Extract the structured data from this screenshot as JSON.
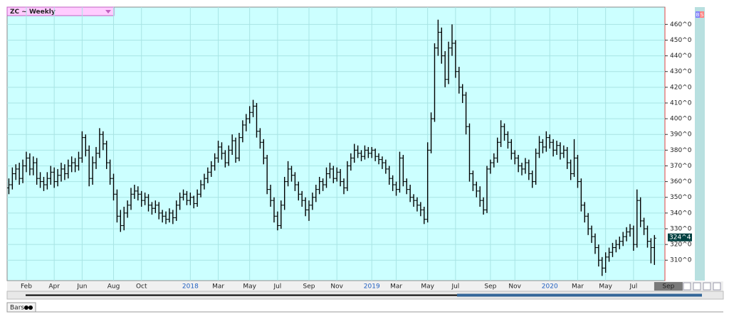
{
  "chart_data": {
    "type": "ohlc",
    "title": "ZC ~ Weekly",
    "tab": "Bars",
    "buttons": [
      "B",
      "S"
    ],
    "ylim": [
      297,
      471
    ],
    "xlim": [
      -0.5,
      188
    ],
    "yticks": [
      {
        "value": 310,
        "label": "310^0"
      },
      {
        "value": 320,
        "label": "320^0"
      },
      {
        "value": 330,
        "label": "330^0"
      },
      {
        "value": 340,
        "label": "340^0"
      },
      {
        "value": 350,
        "label": "350^0"
      },
      {
        "value": 360,
        "label": "360^0"
      },
      {
        "value": 370,
        "label": "370^0"
      },
      {
        "value": 380,
        "label": "380^0"
      },
      {
        "value": 390,
        "label": "390^0"
      },
      {
        "value": 400,
        "label": "400^0"
      },
      {
        "value": 410,
        "label": "410^0"
      },
      {
        "value": 420,
        "label": "420^0"
      },
      {
        "value": 430,
        "label": "430^0"
      },
      {
        "value": 440,
        "label": "440^0"
      },
      {
        "value": 450,
        "label": "450^0"
      },
      {
        "value": 460,
        "label": "460^0"
      }
    ],
    "xticks": [
      {
        "value": 5,
        "label": "Feb"
      },
      {
        "value": 13,
        "label": "Apr"
      },
      {
        "value": 21,
        "label": "Jun"
      },
      {
        "value": 30,
        "label": "Aug"
      },
      {
        "value": 38,
        "label": "Oct"
      },
      {
        "value": 52,
        "label": "2018"
      },
      {
        "value": 60,
        "label": "Mar"
      },
      {
        "value": 69,
        "label": "May"
      },
      {
        "value": 77,
        "label": "Jul"
      },
      {
        "value": 86,
        "label": "Sep"
      },
      {
        "value": 94,
        "label": "Nov"
      },
      {
        "value": 104,
        "label": "2019"
      },
      {
        "value": 111,
        "label": "Mar"
      },
      {
        "value": 120,
        "label": "May"
      },
      {
        "value": 128,
        "label": "Jul"
      },
      {
        "value": 138,
        "label": "Sep"
      },
      {
        "value": 145,
        "label": "Nov"
      },
      {
        "value": 155,
        "label": "2020"
      },
      {
        "value": 163,
        "label": "Mar"
      },
      {
        "value": 171,
        "label": "May"
      },
      {
        "value": 179,
        "label": "Jul"
      },
      {
        "value": 189,
        "label": "Sep"
      }
    ],
    "grid": true,
    "color": "#000000",
    "background": "#ccffff",
    "last": {
      "value": 324.5,
      "label": "324^4"
    },
    "values": [
      [
        356,
        362,
        352,
        358
      ],
      [
        358,
        369,
        355,
        365
      ],
      [
        365,
        371,
        361,
        368
      ],
      [
        368,
        372,
        358,
        362
      ],
      [
        362,
        374,
        359,
        370
      ],
      [
        370,
        379,
        366,
        375
      ],
      [
        375,
        378,
        364,
        368
      ],
      [
        368,
        376,
        364,
        372
      ],
      [
        372,
        375,
        358,
        362
      ],
      [
        362,
        366,
        356,
        360
      ],
      [
        360,
        363,
        354,
        358
      ],
      [
        358,
        366,
        355,
        362
      ],
      [
        362,
        370,
        358,
        366
      ],
      [
        366,
        369,
        356,
        360
      ],
      [
        360,
        368,
        357,
        364
      ],
      [
        364,
        372,
        360,
        368
      ],
      [
        368,
        371,
        361,
        365
      ],
      [
        365,
        374,
        362,
        370
      ],
      [
        370,
        376,
        366,
        372
      ],
      [
        372,
        375,
        366,
        370
      ],
      [
        370,
        379,
        367,
        375
      ],
      [
        375,
        392,
        372,
        388
      ],
      [
        388,
        390,
        376,
        380
      ],
      [
        380,
        383,
        357,
        362
      ],
      [
        362,
        376,
        358,
        372
      ],
      [
        372,
        382,
        368,
        378
      ],
      [
        378,
        394,
        375,
        390
      ],
      [
        390,
        392,
        380,
        384
      ],
      [
        384,
        386,
        368,
        372
      ],
      [
        372,
        374,
        358,
        362
      ],
      [
        362,
        365,
        348,
        352
      ],
      [
        352,
        355,
        334,
        338
      ],
      [
        338,
        342,
        328,
        332
      ],
      [
        332,
        344,
        329,
        340
      ],
      [
        340,
        348,
        337,
        345
      ],
      [
        345,
        356,
        342,
        352
      ],
      [
        352,
        358,
        349,
        354
      ],
      [
        354,
        357,
        348,
        352
      ],
      [
        352,
        354,
        344,
        348
      ],
      [
        348,
        353,
        345,
        350
      ],
      [
        350,
        352,
        341,
        345
      ],
      [
        345,
        347,
        339,
        343
      ],
      [
        343,
        348,
        340,
        345
      ],
      [
        345,
        347,
        336,
        340
      ],
      [
        340,
        342,
        334,
        338
      ],
      [
        338,
        341,
        333,
        336
      ],
      [
        336,
        343,
        334,
        340
      ],
      [
        340,
        342,
        333,
        337
      ],
      [
        337,
        348,
        335,
        345
      ],
      [
        345,
        353,
        342,
        350
      ],
      [
        350,
        355,
        348,
        352
      ],
      [
        352,
        354,
        345,
        348
      ],
      [
        348,
        353,
        345,
        350
      ],
      [
        350,
        351,
        343,
        346
      ],
      [
        346,
        355,
        344,
        352
      ],
      [
        352,
        361,
        350,
        358
      ],
      [
        358,
        365,
        355,
        362
      ],
      [
        362,
        369,
        359,
        366
      ],
      [
        366,
        373,
        363,
        370
      ],
      [
        370,
        378,
        367,
        375
      ],
      [
        375,
        386,
        372,
        382
      ],
      [
        382,
        385,
        374,
        378
      ],
      [
        378,
        380,
        369,
        372
      ],
      [
        372,
        383,
        370,
        380
      ],
      [
        380,
        390,
        377,
        386
      ],
      [
        386,
        388,
        372,
        375
      ],
      [
        375,
        391,
        373,
        388
      ],
      [
        388,
        399,
        385,
        396
      ],
      [
        396,
        403,
        392,
        400
      ],
      [
        400,
        408,
        397,
        404
      ],
      [
        404,
        412,
        401,
        408
      ],
      [
        408,
        410,
        388,
        392
      ],
      [
        392,
        394,
        381,
        385
      ],
      [
        385,
        387,
        371,
        375
      ],
      [
        375,
        377,
        352,
        355
      ],
      [
        355,
        358,
        344,
        348
      ],
      [
        348,
        350,
        334,
        338
      ],
      [
        338,
        341,
        329,
        332
      ],
      [
        332,
        348,
        330,
        345
      ],
      [
        345,
        363,
        342,
        360
      ],
      [
        360,
        373,
        357,
        368
      ],
      [
        368,
        370,
        360,
        364
      ],
      [
        364,
        366,
        354,
        358
      ],
      [
        358,
        360,
        348,
        352
      ],
      [
        352,
        354,
        344,
        348
      ],
      [
        348,
        350,
        338,
        342
      ],
      [
        342,
        348,
        335,
        345
      ],
      [
        345,
        353,
        342,
        350
      ],
      [
        350,
        358,
        347,
        355
      ],
      [
        355,
        363,
        352,
        360
      ],
      [
        360,
        362,
        354,
        358
      ],
      [
        358,
        369,
        356,
        365
      ],
      [
        365,
        372,
        362,
        368
      ],
      [
        368,
        370,
        359,
        362
      ],
      [
        362,
        369,
        360,
        366
      ],
      [
        366,
        368,
        357,
        360
      ],
      [
        360,
        362,
        352,
        356
      ],
      [
        356,
        373,
        354,
        370
      ],
      [
        370,
        378,
        367,
        375
      ],
      [
        375,
        384,
        372,
        380
      ],
      [
        380,
        383,
        375,
        378
      ],
      [
        378,
        380,
        373,
        376
      ],
      [
        376,
        383,
        374,
        380
      ],
      [
        380,
        382,
        375,
        378
      ],
      [
        378,
        382,
        375,
        380
      ],
      [
        380,
        381,
        373,
        376
      ],
      [
        376,
        378,
        371,
        374
      ],
      [
        374,
        376,
        368,
        372
      ],
      [
        372,
        374,
        365,
        368
      ],
      [
        368,
        370,
        358,
        362
      ],
      [
        362,
        364,
        354,
        358
      ],
      [
        358,
        360,
        351,
        355
      ],
      [
        355,
        379,
        353,
        375
      ],
      [
        375,
        377,
        357,
        360
      ],
      [
        360,
        362,
        352,
        355
      ],
      [
        355,
        358,
        347,
        350
      ],
      [
        350,
        352,
        344,
        348
      ],
      [
        348,
        350,
        341,
        345
      ],
      [
        345,
        347,
        338,
        342
      ],
      [
        342,
        344,
        333,
        336
      ],
      [
        336,
        385,
        334,
        380
      ],
      [
        380,
        404,
        378,
        400
      ],
      [
        400,
        448,
        398,
        445
      ],
      [
        445,
        463,
        440,
        455
      ],
      [
        455,
        458,
        435,
        440
      ],
      [
        440,
        443,
        420,
        425
      ],
      [
        425,
        449,
        422,
        445
      ],
      [
        445,
        460,
        440,
        448
      ],
      [
        448,
        450,
        426,
        430
      ],
      [
        430,
        433,
        416,
        420
      ],
      [
        420,
        422,
        410,
        415
      ],
      [
        415,
        417,
        390,
        395
      ],
      [
        395,
        397,
        360,
        365
      ],
      [
        365,
        367,
        354,
        358
      ],
      [
        358,
        360,
        350,
        354
      ],
      [
        354,
        357,
        344,
        348
      ],
      [
        348,
        350,
        339,
        342
      ],
      [
        342,
        370,
        340,
        368
      ],
      [
        368,
        374,
        365,
        372
      ],
      [
        372,
        378,
        369,
        375
      ],
      [
        375,
        388,
        372,
        385
      ],
      [
        385,
        399,
        382,
        395
      ],
      [
        395,
        397,
        386,
        390
      ],
      [
        390,
        392,
        381,
        385
      ],
      [
        385,
        387,
        374,
        378
      ],
      [
        378,
        380,
        371,
        375
      ],
      [
        375,
        377,
        366,
        370
      ],
      [
        370,
        372,
        364,
        368
      ],
      [
        368,
        375,
        365,
        372
      ],
      [
        372,
        374,
        361,
        365
      ],
      [
        365,
        367,
        356,
        360
      ],
      [
        360,
        381,
        358,
        378
      ],
      [
        378,
        389,
        375,
        385
      ],
      [
        385,
        387,
        378,
        382
      ],
      [
        382,
        392,
        379,
        388
      ],
      [
        388,
        390,
        381,
        385
      ],
      [
        385,
        387,
        376,
        380
      ],
      [
        380,
        386,
        377,
        383
      ],
      [
        383,
        385,
        374,
        378
      ],
      [
        378,
        383,
        375,
        380
      ],
      [
        380,
        382,
        368,
        372
      ],
      [
        372,
        374,
        361,
        365
      ],
      [
        365,
        387,
        363,
        375
      ],
      [
        375,
        377,
        356,
        360
      ],
      [
        360,
        362,
        341,
        345
      ],
      [
        345,
        347,
        334,
        338
      ],
      [
        338,
        340,
        326,
        330
      ],
      [
        330,
        332,
        321,
        325
      ],
      [
        325,
        327,
        314,
        318
      ],
      [
        318,
        320,
        306,
        310
      ],
      [
        310,
        312,
        300,
        305
      ],
      [
        305,
        315,
        302,
        312
      ],
      [
        312,
        318,
        309,
        315
      ],
      [
        315,
        321,
        312,
        318
      ],
      [
        318,
        323,
        315,
        320
      ],
      [
        320,
        325,
        317,
        322
      ],
      [
        322,
        328,
        319,
        325
      ],
      [
        325,
        331,
        322,
        328
      ],
      [
        328,
        333,
        325,
        330
      ],
      [
        330,
        332,
        316,
        320
      ],
      [
        320,
        355,
        318,
        348
      ],
      [
        348,
        350,
        331,
        335
      ],
      [
        335,
        337,
        326,
        330
      ],
      [
        330,
        332,
        318,
        322
      ],
      [
        322,
        324,
        308,
        318
      ],
      [
        318,
        326,
        307,
        324
      ]
    ]
  }
}
